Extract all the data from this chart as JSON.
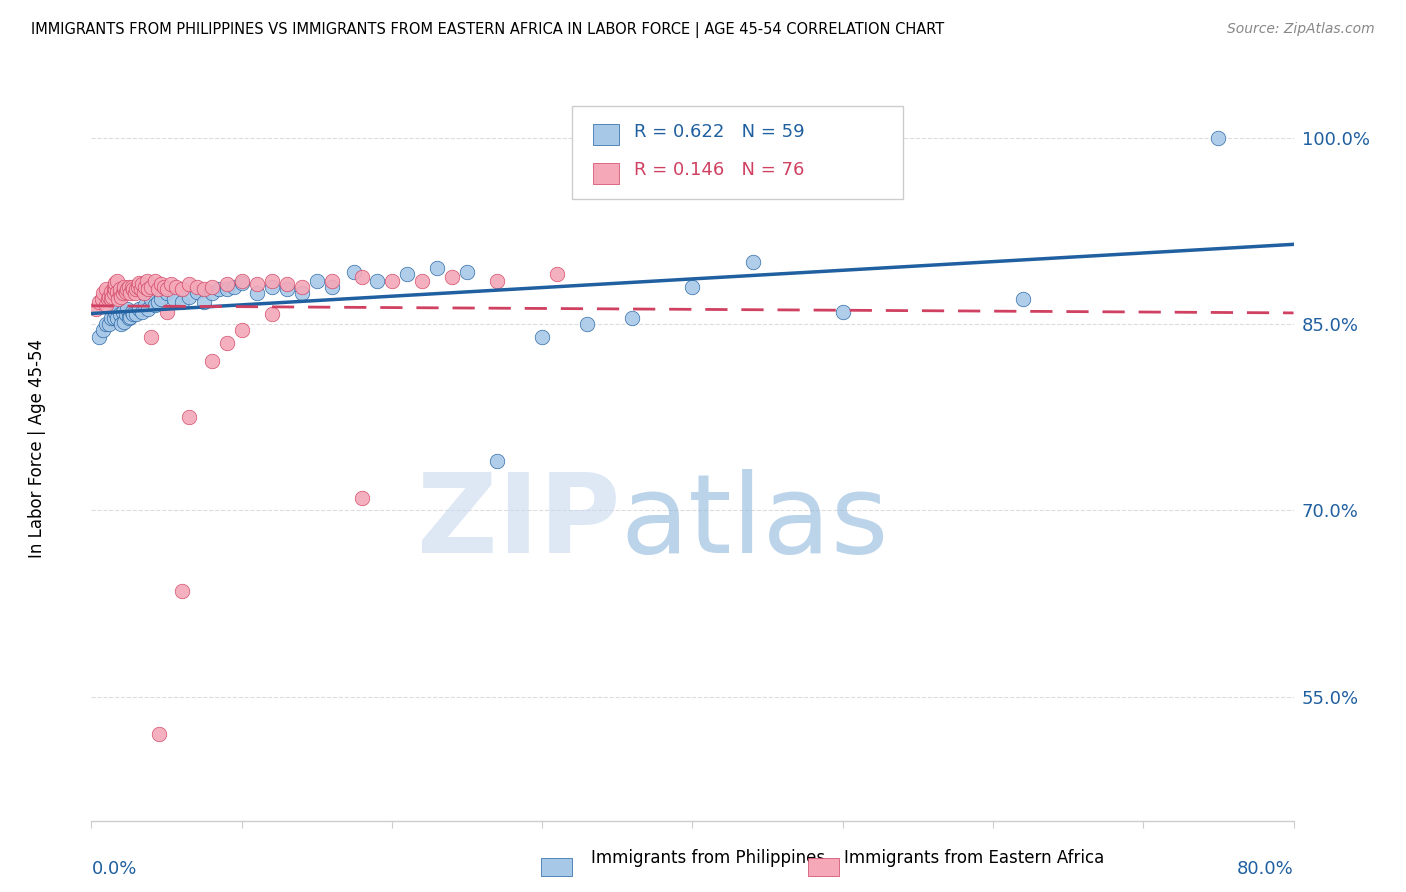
{
  "title": "IMMIGRANTS FROM PHILIPPINES VS IMMIGRANTS FROM EASTERN AFRICA IN LABOR FORCE | AGE 45-54 CORRELATION CHART",
  "source": "Source: ZipAtlas.com",
  "ylabel": "In Labor Force | Age 45-54",
  "yaxis_ticks": [
    0.55,
    0.7,
    0.85,
    1.0
  ],
  "yaxis_labels": [
    "55.0%",
    "70.0%",
    "85.0%",
    "100.0%"
  ],
  "xlim": [
    0.0,
    0.8
  ],
  "ylim": [
    0.45,
    1.05
  ],
  "legend_R_blue": "R = 0.622",
  "legend_N_blue": "N = 59",
  "legend_R_pink": "R = 0.146",
  "legend_N_pink": "N = 76",
  "blue_color": "#A8C8E8",
  "pink_color": "#F4A8B8",
  "blue_line_color": "#2060A0",
  "pink_line_color": "#D04060",
  "blue_scatter_x": [
    0.005,
    0.008,
    0.01,
    0.012,
    0.013,
    0.015,
    0.016,
    0.017,
    0.018,
    0.019,
    0.02,
    0.021,
    0.022,
    0.023,
    0.024,
    0.025,
    0.026,
    0.027,
    0.028,
    0.03,
    0.032,
    0.034,
    0.036,
    0.038,
    0.04,
    0.042,
    0.044,
    0.046,
    0.05,
    0.055,
    0.06,
    0.065,
    0.07,
    0.075,
    0.08,
    0.085,
    0.09,
    0.095,
    0.1,
    0.11,
    0.12,
    0.13,
    0.14,
    0.15,
    0.16,
    0.175,
    0.19,
    0.21,
    0.23,
    0.25,
    0.27,
    0.3,
    0.33,
    0.36,
    0.4,
    0.44,
    0.5,
    0.62,
    0.75
  ],
  "blue_scatter_y": [
    0.84,
    0.845,
    0.85,
    0.85,
    0.855,
    0.855,
    0.86,
    0.855,
    0.862,
    0.858,
    0.85,
    0.86,
    0.852,
    0.858,
    0.862,
    0.855,
    0.856,
    0.86,
    0.858,
    0.858,
    0.862,
    0.86,
    0.865,
    0.862,
    0.87,
    0.865,
    0.868,
    0.87,
    0.875,
    0.87,
    0.868,
    0.872,
    0.876,
    0.868,
    0.875,
    0.878,
    0.878,
    0.88,
    0.883,
    0.875,
    0.88,
    0.878,
    0.875,
    0.885,
    0.88,
    0.892,
    0.885,
    0.89,
    0.895,
    0.892,
    0.74,
    0.84,
    0.85,
    0.855,
    0.88,
    0.9,
    0.86,
    0.87,
    1.0
  ],
  "pink_scatter_x": [
    0.003,
    0.005,
    0.007,
    0.008,
    0.01,
    0.01,
    0.011,
    0.012,
    0.013,
    0.013,
    0.014,
    0.015,
    0.015,
    0.016,
    0.016,
    0.017,
    0.017,
    0.018,
    0.019,
    0.019,
    0.02,
    0.021,
    0.022,
    0.022,
    0.023,
    0.024,
    0.025,
    0.026,
    0.027,
    0.028,
    0.029,
    0.03,
    0.031,
    0.032,
    0.033,
    0.034,
    0.035,
    0.036,
    0.037,
    0.038,
    0.04,
    0.042,
    0.044,
    0.046,
    0.048,
    0.05,
    0.053,
    0.056,
    0.06,
    0.065,
    0.07,
    0.075,
    0.08,
    0.09,
    0.1,
    0.11,
    0.12,
    0.13,
    0.14,
    0.16,
    0.18,
    0.2,
    0.22,
    0.24,
    0.27,
    0.31,
    0.18,
    0.05,
    0.1,
    0.12,
    0.065,
    0.08,
    0.09,
    0.06,
    0.045,
    0.04
  ],
  "pink_scatter_y": [
    0.862,
    0.868,
    0.87,
    0.875,
    0.878,
    0.865,
    0.87,
    0.872,
    0.876,
    0.87,
    0.872,
    0.875,
    0.88,
    0.878,
    0.883,
    0.876,
    0.885,
    0.87,
    0.875,
    0.878,
    0.872,
    0.875,
    0.878,
    0.88,
    0.876,
    0.878,
    0.88,
    0.875,
    0.88,
    0.878,
    0.875,
    0.878,
    0.88,
    0.883,
    0.878,
    0.882,
    0.875,
    0.88,
    0.885,
    0.878,
    0.88,
    0.885,
    0.878,
    0.882,
    0.88,
    0.878,
    0.882,
    0.88,
    0.878,
    0.882,
    0.88,
    0.878,
    0.88,
    0.882,
    0.885,
    0.882,
    0.885,
    0.882,
    0.88,
    0.885,
    0.888,
    0.885,
    0.885,
    0.888,
    0.885,
    0.89,
    0.71,
    0.86,
    0.845,
    0.858,
    0.775,
    0.82,
    0.835,
    0.635,
    0.52,
    0.84
  ]
}
